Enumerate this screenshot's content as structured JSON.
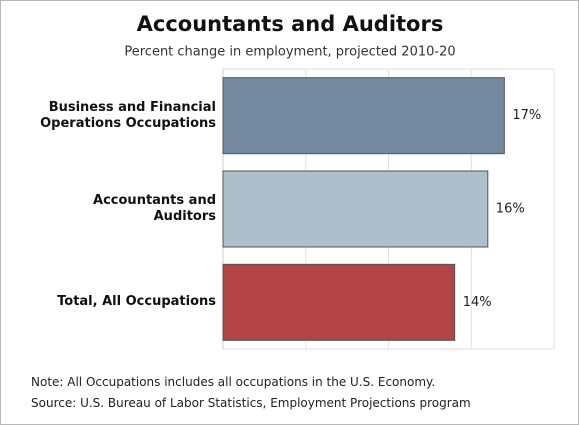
{
  "chart_data": {
    "type": "bar",
    "orientation": "horizontal",
    "title": "Accountants and Auditors",
    "subtitle": "Percent change in employment, projected 2010-20",
    "categories": [
      "Business and Financial Operations Occupations",
      "Accountants and Auditors",
      "Total, All Occupations"
    ],
    "values": [
      17,
      16,
      14
    ],
    "value_labels": [
      "17%",
      "16%",
      "14%"
    ],
    "colors": [
      "#7289a0",
      "#aebfcc",
      "#b34446"
    ],
    "xlim": [
      0,
      20
    ],
    "xticks": [
      0,
      5,
      10,
      15,
      20
    ],
    "grid": true,
    "notes": [
      "Note: All Occupations includes all occupations in the U.S. Economy.",
      "Source: U.S. Bureau of Labor Statistics, Employment Projections program"
    ]
  }
}
